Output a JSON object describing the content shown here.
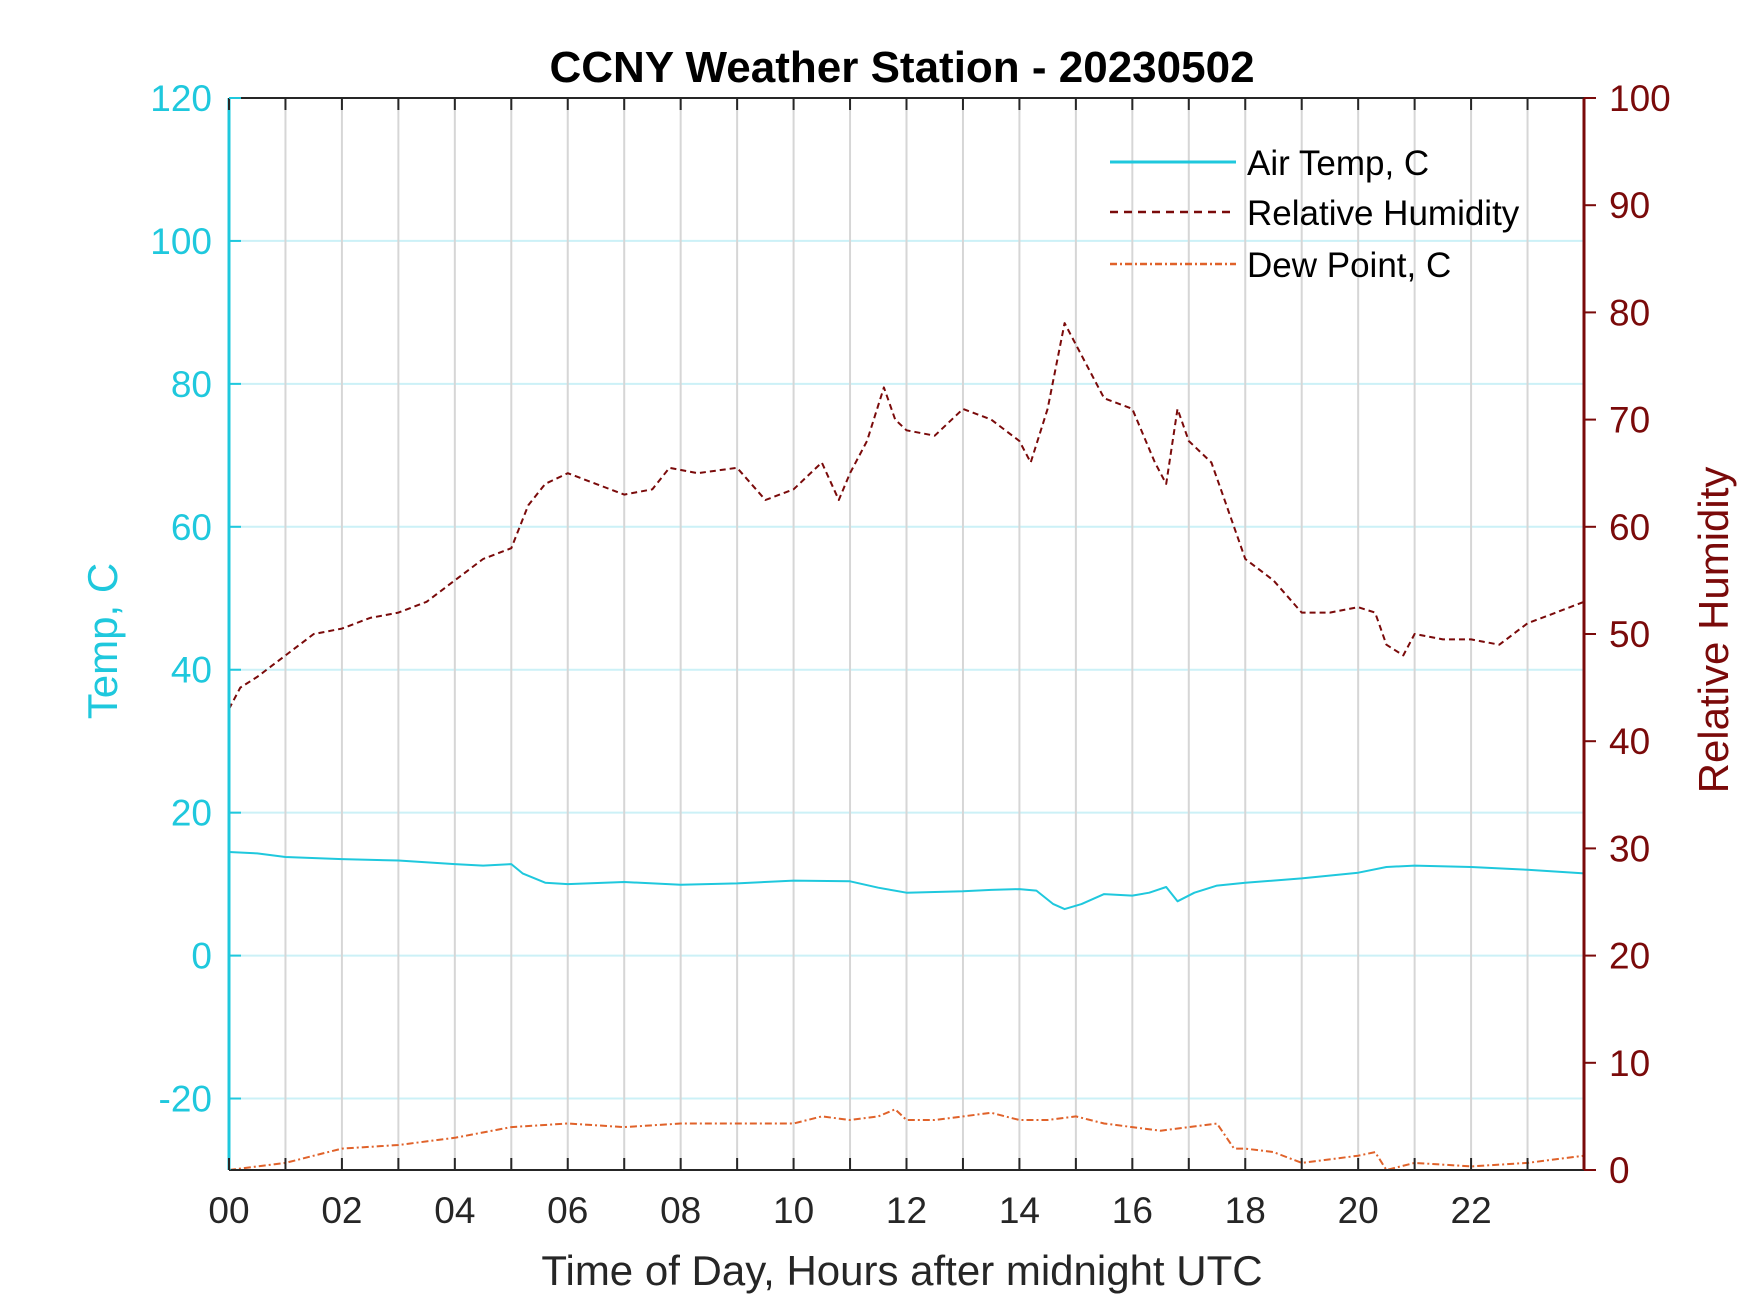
{
  "colors": {
    "air_temp": "#1fc8dd",
    "humidity": "#7a0a0a",
    "dew_point": "#e0622a",
    "grid_v": "#d6d6d6",
    "grid_h": "#ccf1f7",
    "axis_x": "#262626"
  },
  "chart_data": {
    "type": "line",
    "title": "CCNY Weather Station - 20230502",
    "xlabel": "Time of Day, Hours after midnight UTC",
    "ylabel_left": "Temp, C",
    "ylabel_right": "Relative Humidity",
    "xlim": [
      0,
      24
    ],
    "ylim_left": [
      -30,
      120
    ],
    "ylim_right": [
      0,
      100
    ],
    "x_ticks": [
      0,
      2,
      4,
      6,
      8,
      10,
      12,
      14,
      16,
      18,
      20,
      22
    ],
    "x_tick_labels": [
      "00",
      "02",
      "04",
      "06",
      "08",
      "10",
      "12",
      "14",
      "16",
      "18",
      "20",
      "22"
    ],
    "y_left_ticks": [
      120,
      100,
      80,
      60,
      40,
      20,
      0,
      -20
    ],
    "y_left_tick_labels": [
      "120",
      "100",
      "80",
      "60",
      "40",
      "20",
      "0",
      "-20"
    ],
    "y_right_ticks": [
      100,
      90,
      80,
      70,
      60,
      50,
      40,
      30,
      20,
      10,
      0
    ],
    "y_right_tick_labels": [
      "100",
      "90",
      "80",
      "70",
      "60",
      "50",
      "40",
      "30",
      "20",
      "10",
      "0"
    ],
    "grid": "vertical lines at each hour; light horizontal lines at left ticks",
    "legend_position": "top-right",
    "series": [
      {
        "name": "Air Temp, C",
        "axis": "left",
        "style": "solid",
        "x": [
          0,
          0.5,
          1,
          2,
          3,
          4,
          4.5,
          5,
          5.2,
          5.6,
          6,
          7,
          8,
          9,
          10,
          11,
          11.5,
          12,
          13,
          13.5,
          14,
          14.3,
          14.6,
          14.8,
          15.1,
          15.5,
          16,
          16.3,
          16.6,
          16.8,
          17.1,
          17.5,
          18,
          19,
          20,
          20.5,
          21,
          22,
          23,
          24
        ],
        "values": [
          14.5,
          14.3,
          13.8,
          13.5,
          13.3,
          12.8,
          12.6,
          12.8,
          11.5,
          10.2,
          10.0,
          10.3,
          9.9,
          10.1,
          10.5,
          10.4,
          9.5,
          8.8,
          9.0,
          9.2,
          9.3,
          9.1,
          7.2,
          6.5,
          7.2,
          8.6,
          8.4,
          8.8,
          9.6,
          7.6,
          8.8,
          9.8,
          10.2,
          10.8,
          11.6,
          12.4,
          12.6,
          12.4,
          12.0,
          11.5
        ]
      },
      {
        "name": "Relative Humidity",
        "axis": "right",
        "style": "dashed",
        "x": [
          0,
          0.2,
          0.5,
          1,
          1.5,
          2,
          2.5,
          3,
          3.5,
          4,
          4.5,
          5,
          5.3,
          5.6,
          6,
          6.5,
          7,
          7.5,
          7.8,
          8.3,
          9,
          9.5,
          10,
          10.5,
          10.8,
          11,
          11.3,
          11.6,
          11.8,
          12,
          12.5,
          13,
          13.5,
          14,
          14.2,
          14.5,
          14.8,
          15,
          15.3,
          15.5,
          16,
          16.4,
          16.6,
          16.8,
          17,
          17.4,
          17.6,
          17.8,
          18,
          18.5,
          19,
          19.5,
          20,
          20.3,
          20.5,
          20.8,
          21,
          21.5,
          22,
          22.5,
          23,
          23.5,
          24
        ],
        "values": [
          43,
          45,
          46,
          48,
          50,
          50.5,
          51.5,
          52,
          53,
          55,
          57,
          58,
          62,
          64,
          65,
          64,
          63,
          63.5,
          65.5,
          65,
          65.5,
          62.5,
          63.5,
          66,
          62.5,
          65,
          68,
          73,
          70,
          69,
          68.5,
          71,
          70,
          68,
          66,
          71,
          79,
          77,
          74,
          72,
          71,
          66,
          64,
          71,
          68,
          66,
          63,
          60,
          57,
          55,
          52,
          52,
          52.5,
          52,
          49,
          48,
          50,
          49.5,
          49.5,
          49,
          51,
          52,
          53
        ]
      },
      {
        "name": "Dew Point, C",
        "axis": "left",
        "style": "dash-dot",
        "x": [
          0,
          0.5,
          1,
          1.5,
          2,
          3,
          4,
          5,
          6,
          7,
          8,
          9,
          10,
          10.5,
          11,
          11.5,
          11.8,
          12,
          12.5,
          13,
          13.5,
          14,
          14.5,
          15,
          15.5,
          16,
          16.5,
          17,
          17.5,
          17.8,
          18,
          18.5,
          19,
          20,
          20.3,
          20.5,
          21,
          22,
          23,
          24
        ],
        "values": [
          -30,
          -29.5,
          -29,
          -28,
          -27,
          -26.5,
          -25.5,
          -24,
          -23.5,
          -24,
          -23.5,
          -23.5,
          -23.5,
          -22.5,
          -23,
          -22.5,
          -21.5,
          -23,
          -23,
          -22.5,
          -22,
          -23,
          -23,
          -22.5,
          -23.5,
          -24,
          -24.5,
          -24,
          -23.5,
          -27,
          -27,
          -27.5,
          -29,
          -28,
          -27.5,
          -30,
          -29,
          -29.5,
          -29,
          -28
        ]
      }
    ]
  }
}
